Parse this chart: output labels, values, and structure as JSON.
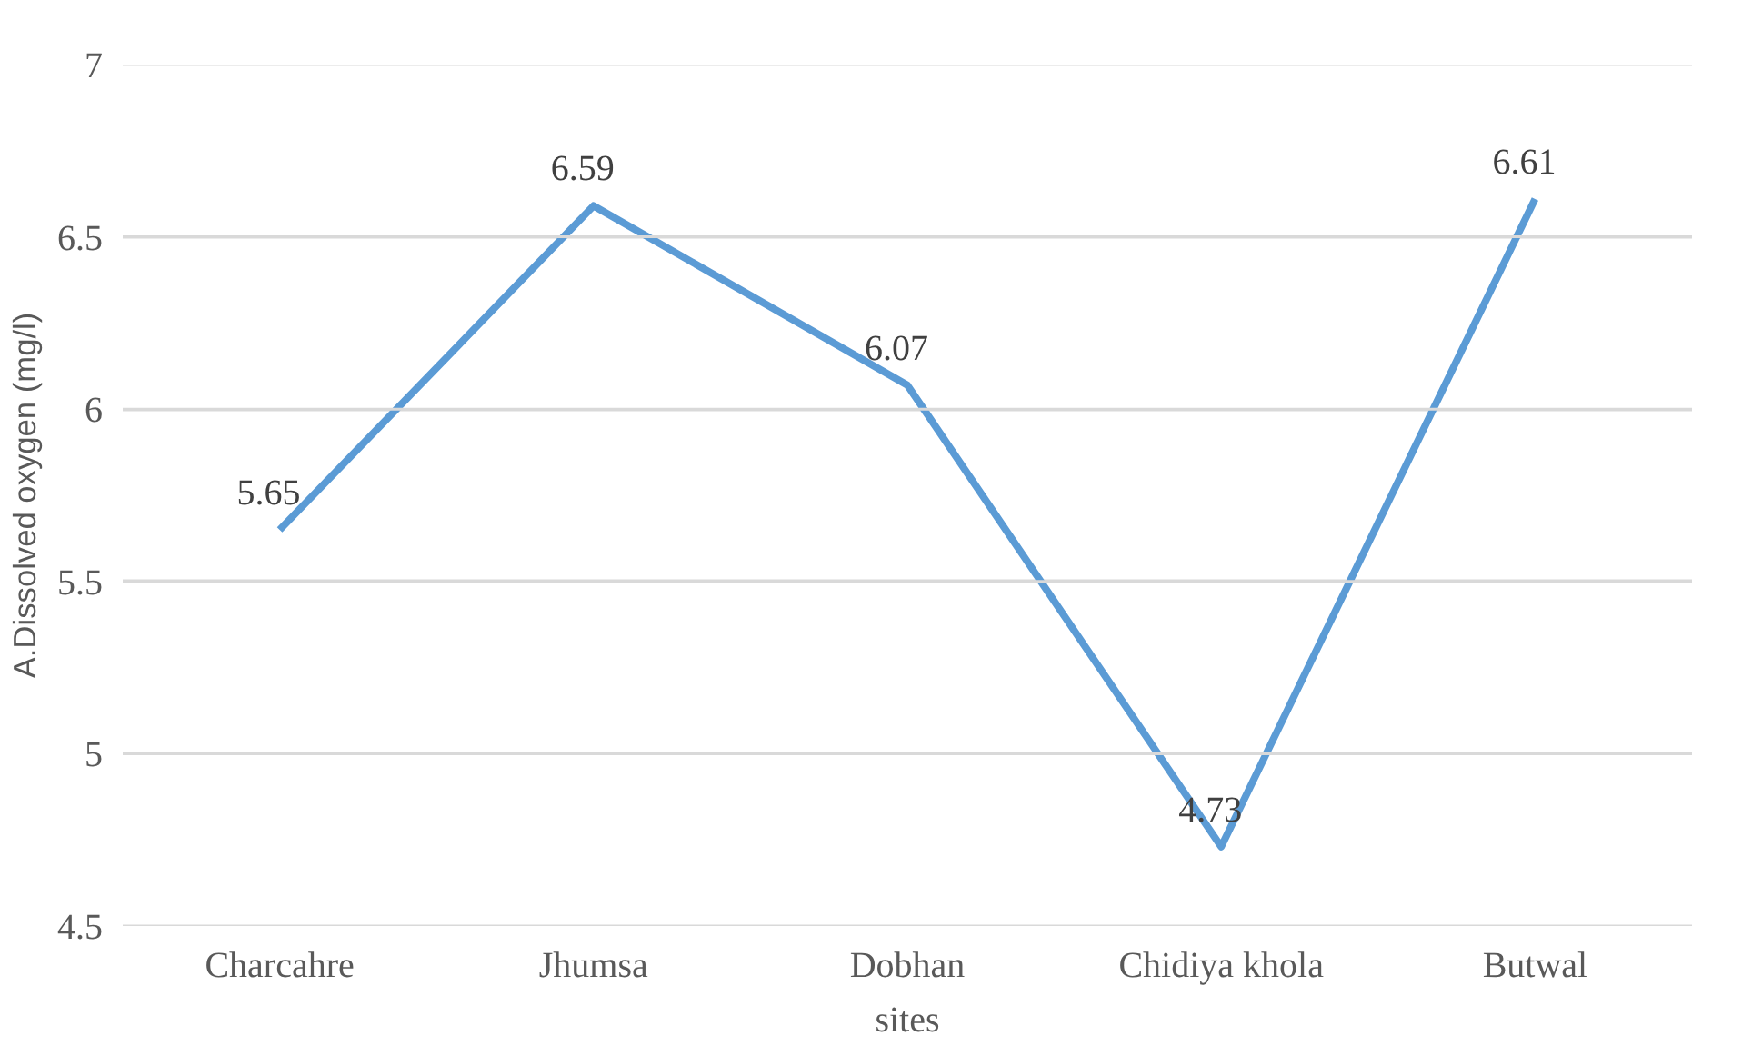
{
  "chart_data": {
    "type": "line",
    "xlabel": "sites",
    "ylabel": "A.Dissolved oxygen (mg/l)",
    "categories": [
      "Charcahre",
      "Jhumsa",
      "Dobhan",
      "Chidiya khola",
      "Butwal"
    ],
    "series": [
      {
        "color": "#5b9bd5",
        "values": [
          5.65,
          6.59,
          6.07,
          4.73,
          6.61
        ]
      }
    ],
    "ylim": [
      4.5,
      7
    ],
    "yticks": [
      4.5,
      5,
      5.5,
      6,
      6.5,
      7
    ],
    "grid": "y",
    "data_labels": true,
    "marker": "none",
    "line_style": "solid"
  }
}
